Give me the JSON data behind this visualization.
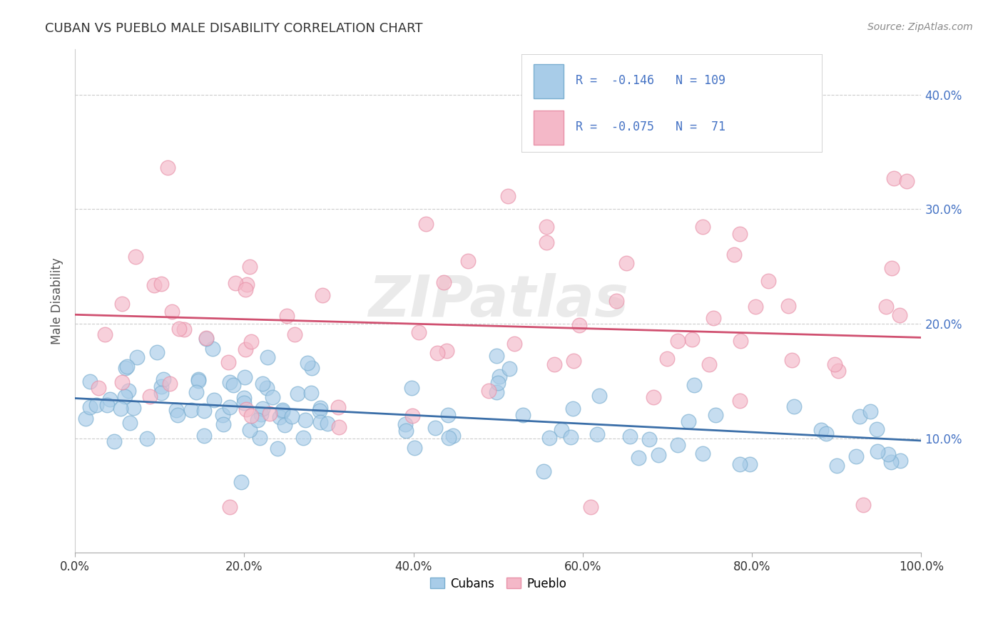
{
  "title": "CUBAN VS PUEBLO MALE DISABILITY CORRELATION CHART",
  "source": "Source: ZipAtlas.com",
  "ylabel": "Male Disability",
  "xlim": [
    0,
    1.0
  ],
  "ylim": [
    0.0,
    0.44
  ],
  "xticks": [
    0.0,
    0.2,
    0.4,
    0.6,
    0.8,
    1.0
  ],
  "yticks": [
    0.1,
    0.2,
    0.3,
    0.4
  ],
  "blue_color": "#a8cce8",
  "pink_color": "#f4b8c8",
  "blue_edge_color": "#7aaed0",
  "pink_edge_color": "#e890a8",
  "blue_line_color": "#3a6ea8",
  "pink_line_color": "#d05070",
  "R_blue": -0.146,
  "N_blue": 109,
  "R_pink": -0.075,
  "N_pink": 71,
  "blue_line_start_y": 0.135,
  "blue_line_end_y": 0.098,
  "pink_line_start_y": 0.208,
  "pink_line_end_y": 0.188,
  "title_color": "#333333",
  "source_color": "#888888",
  "axis_label_color": "#555555",
  "tick_color": "#4472c4",
  "watermark": "ZIPatlas",
  "background_color": "#ffffff",
  "grid_color": "#cccccc"
}
